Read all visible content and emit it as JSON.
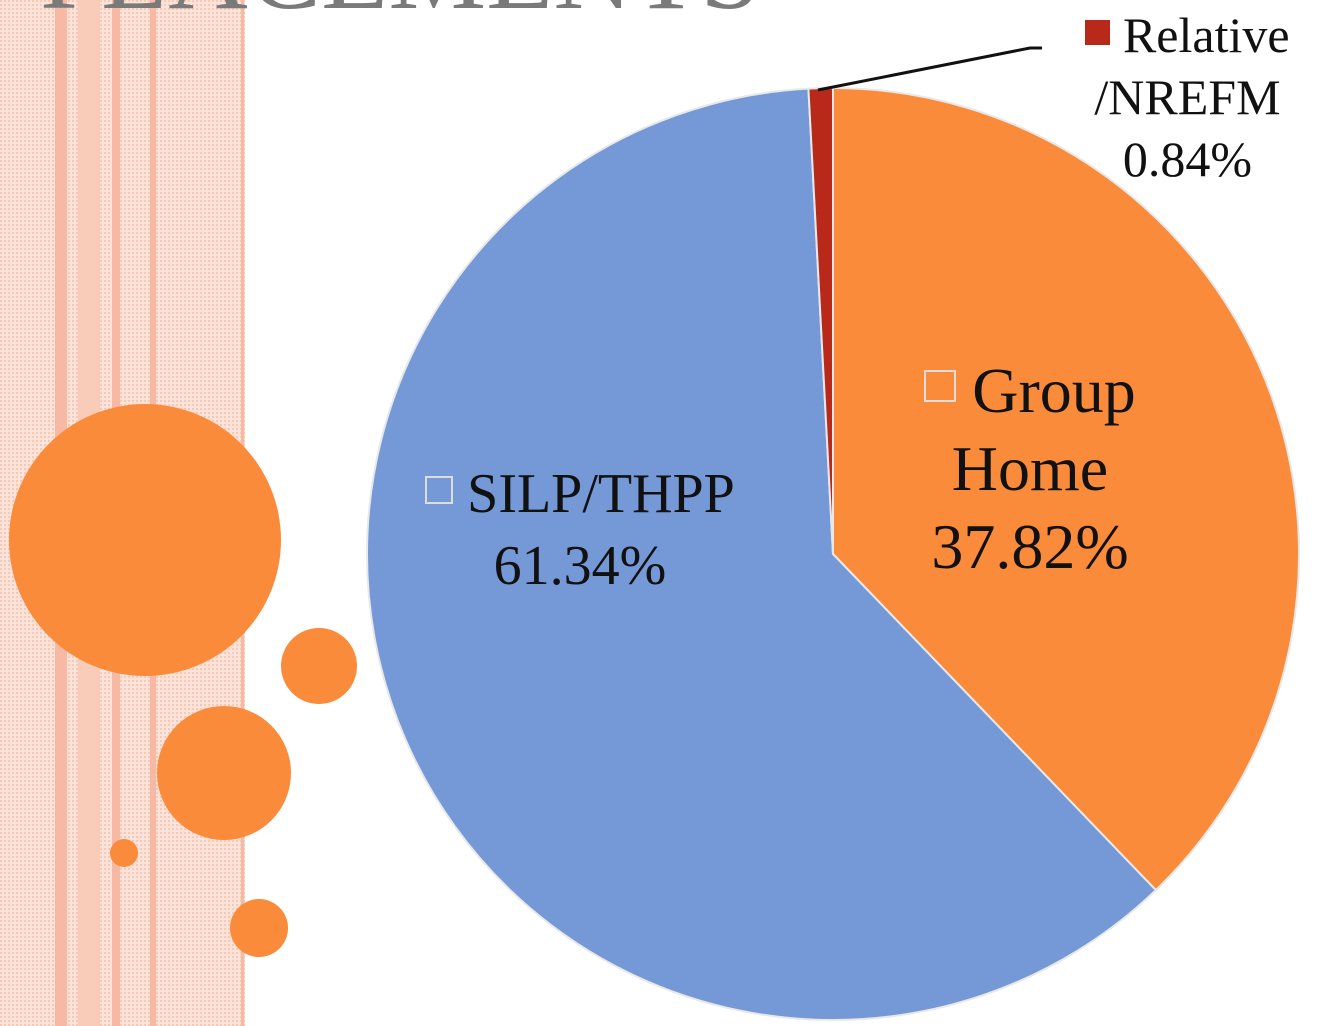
{
  "chart_data": {
    "type": "pie",
    "title": "PLACEMENTS",
    "categories": [
      "Group Home",
      "SILP/THPP",
      "Relative /NREFM"
    ],
    "values": [
      37.82,
      61.34,
      0.84
    ],
    "value_labels": [
      "37.82%",
      "61.34%",
      "0.84%"
    ],
    "colors": [
      "#fa8b3b",
      "#7598d6",
      "#b8291a"
    ]
  }
}
